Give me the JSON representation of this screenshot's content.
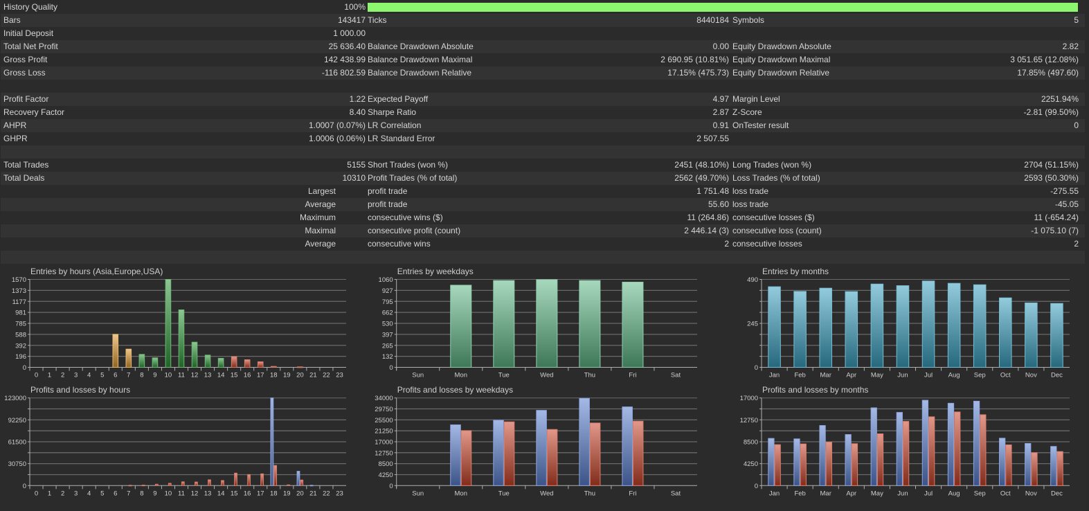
{
  "stats": {
    "history_quality_percent": 100,
    "quality_bar_color": "#8cf66e",
    "rows": [
      [
        "History Quality",
        "100%",
        "",
        "",
        "",
        ""
      ],
      [
        "Bars",
        "143417",
        "Ticks",
        "8440184",
        "Symbols",
        "5"
      ],
      [
        "Initial Deposit",
        "1 000.00",
        "",
        "",
        "",
        ""
      ],
      [
        "Total Net Profit",
        "25 636.40",
        "Balance Drawdown Absolute",
        "0.00",
        "Equity Drawdown Absolute",
        "2.82"
      ],
      [
        "Gross Profit",
        "142 438.99",
        "Balance Drawdown Maximal",
        "2 690.95 (10.81%)",
        "Equity Drawdown Maximal",
        "3 051.65 (12.08%)"
      ],
      [
        "Gross Loss",
        "-116 802.59",
        "Balance Drawdown Relative",
        "17.15% (475.73)",
        "Equity Drawdown Relative",
        "17.85% (497.60)"
      ],
      [
        "",
        "",
        "",
        "",
        "",
        ""
      ],
      [
        "Profit Factor",
        "1.22",
        "Expected Payoff",
        "4.97",
        "Margin Level",
        "2251.94%"
      ],
      [
        "Recovery Factor",
        "8.40",
        "Sharpe Ratio",
        "2.87",
        "Z-Score",
        "-2.81 (99.50%)"
      ],
      [
        "AHPR",
        "1.0007 (0.07%)",
        "LR Correlation",
        "0.91",
        "OnTester result",
        "0"
      ],
      [
        "GHPR",
        "1.0006 (0.06%)",
        "LR Standard Error",
        "2 507.55",
        "",
        ""
      ],
      [
        "",
        "",
        "",
        "",
        "",
        ""
      ],
      [
        "Total Trades",
        "5155",
        "Short Trades (won %)",
        "2451 (48.10%)",
        "Long Trades (won %)",
        "2704 (51.15%)"
      ],
      [
        "Total Deals",
        "10310",
        "Profit Trades (% of total)",
        "2562 (49.70%)",
        "Loss Trades (% of total)",
        "2593 (50.30%)"
      ],
      [
        "Largest",
        "",
        "profit trade",
        "1 751.48",
        "loss trade",
        "-275.55"
      ],
      [
        "Average",
        "",
        "profit trade",
        "55.60",
        "loss trade",
        "-45.05"
      ],
      [
        "Maximum",
        "",
        "consecutive wins ($)",
        "11 (264.86)",
        "consecutive losses ($)",
        "11 (-654.24)"
      ],
      [
        "Maximal",
        "",
        "consecutive profit (count)",
        "2 446.14 (3)",
        "consecutive loss (count)",
        "-1 075.10 (7)"
      ],
      [
        "Average",
        "",
        "consecutive wins",
        "2",
        "consecutive losses",
        "2"
      ],
      [
        "",
        "",
        "",
        "",
        "",
        ""
      ]
    ]
  },
  "chart_data": [
    {
      "type": "bar",
      "title": "Entries by hours (Asia,Europe,USA)",
      "categories": [
        "0",
        "1",
        "2",
        "3",
        "4",
        "5",
        "6",
        "7",
        "8",
        "9",
        "10",
        "11",
        "12",
        "13",
        "14",
        "15",
        "16",
        "17",
        "18",
        "19",
        "20",
        "21",
        "22",
        "23"
      ],
      "ytick_labels": [
        "0",
        "196",
        "392",
        "588",
        "785",
        "981",
        "1177",
        "1373",
        "1570"
      ],
      "ylim": [
        0,
        1570
      ],
      "grid": true,
      "series": [
        {
          "values": [
            0,
            0,
            0,
            0,
            0,
            0,
            589,
            325,
            231,
            169,
            1570,
            1026,
            449,
            218,
            161,
            190,
            136,
            99,
            16,
            0,
            8,
            0,
            0,
            0
          ]
        }
      ],
      "category_colors": [
        "#e09a30",
        "#e09a30",
        "#e09a30",
        "#e09a30",
        "#e09a30",
        "#e09a30",
        "#e09a30",
        "#e09a30",
        "#2f9a3a",
        "#2f9a3a",
        "#2f9a3a",
        "#2f9a3a",
        "#2f9a3a",
        "#2f9a3a",
        "#2f9a3a",
        "#c8442a",
        "#c8442a",
        "#c8442a",
        "#c8442a",
        "#c8442a",
        "#c8442a",
        "#c8442a",
        "#c8442a",
        "#c8442a"
      ]
    },
    {
      "type": "bar",
      "title": "Entries by weekdays",
      "categories": [
        "Sun",
        "Mon",
        "Tue",
        "Wed",
        "Thu",
        "Fri",
        "Sat"
      ],
      "ytick_labels": [
        "0",
        "132",
        "265",
        "397",
        "530",
        "662",
        "795",
        "927",
        "1060"
      ],
      "ylim": [
        0,
        1060
      ],
      "grid": true,
      "series": [
        {
          "values": [
            0,
            990,
            1046,
            1057,
            1046,
            1027,
            0
          ],
          "color": "#5fb887"
        }
      ]
    },
    {
      "type": "bar",
      "title": "Entries by months",
      "categories": [
        "Jan",
        "Feb",
        "Mar",
        "Apr",
        "May",
        "Jun",
        "Jul",
        "Aug",
        "Sep",
        "Oct",
        "Nov",
        "Dec"
      ],
      "ytick_labels": [
        "0",
        "",
        "",
        "",
        "245",
        "",
        "",
        "",
        "490"
      ],
      "ylim": [
        0,
        490
      ],
      "grid": true,
      "series": [
        {
          "values": [
            449,
            423,
            441,
            422,
            464,
            455,
            481,
            468,
            460,
            387,
            359,
            356
          ],
          "color": "#3aa0c0"
        }
      ]
    },
    {
      "type": "bar",
      "title": "Profits and losses by hours",
      "categories": [
        "0",
        "1",
        "2",
        "3",
        "4",
        "5",
        "6",
        "7",
        "8",
        "9",
        "10",
        "11",
        "12",
        "13",
        "14",
        "15",
        "16",
        "17",
        "18",
        "19",
        "20",
        "21",
        "22",
        "23"
      ],
      "ytick_labels": [
        "0",
        "",
        "30750",
        "",
        "61500",
        "",
        "92250",
        "",
        "123000"
      ],
      "ylim": [
        0,
        123000
      ],
      "grid": true,
      "series": [
        {
          "values": [
            0,
            0,
            0,
            0,
            0,
            0,
            0,
            0,
            0,
            0,
            0,
            0,
            0,
            0,
            0,
            0,
            0,
            0,
            123000,
            0,
            20100,
            500,
            0,
            0
          ],
          "color": "#5a7fd0"
        },
        {
          "values": [
            0,
            0,
            0,
            0,
            0,
            0,
            0,
            500,
            650,
            1900,
            3200,
            5300,
            5000,
            8100,
            7100,
            17500,
            15500,
            16500,
            28200,
            1000,
            7800,
            0,
            0,
            0
          ],
          "color": "#c8442a"
        }
      ]
    },
    {
      "type": "bar",
      "title": "Profits and losses by weekdays",
      "categories": [
        "Sun",
        "Mon",
        "Tue",
        "Wed",
        "Thu",
        "Fri",
        "Sat"
      ],
      "ytick_labels": [
        "0",
        "4250",
        "8500",
        "12750",
        "17000",
        "21250",
        "25500",
        "29750",
        "34000"
      ],
      "ylim": [
        0,
        34000
      ],
      "grid": true,
      "series": [
        {
          "values": [
            0,
            23560,
            25340,
            29180,
            33820,
            30520,
            0
          ],
          "color": "#5a7fd0"
        },
        {
          "values": [
            0,
            21330,
            24720,
            21770,
            24270,
            24990,
            0
          ],
          "color": "#c8442a"
        }
      ]
    },
    {
      "type": "bar",
      "title": "Profits and losses by months",
      "categories": [
        "Jan",
        "Feb",
        "Mar",
        "Apr",
        "May",
        "Jun",
        "Jul",
        "Aug",
        "Sep",
        "Oct",
        "Nov",
        "Dec"
      ],
      "ytick_labels": [
        "0",
        "",
        "4250",
        "",
        "8500",
        "",
        "12750",
        "",
        "17000"
      ],
      "ylim": [
        0,
        17000
      ],
      "grid": true,
      "series": [
        {
          "values": [
            9150,
            9060,
            11650,
            9900,
            15080,
            14190,
            16550,
            15970,
            16370,
            9190,
            8170,
            7590
          ],
          "color": "#5a7fd0"
        },
        {
          "values": [
            7940,
            8080,
            8430,
            8120,
            10040,
            12450,
            13340,
            14280,
            13740,
            7900,
            6380,
            6600
          ],
          "color": "#c8442a"
        }
      ]
    }
  ]
}
